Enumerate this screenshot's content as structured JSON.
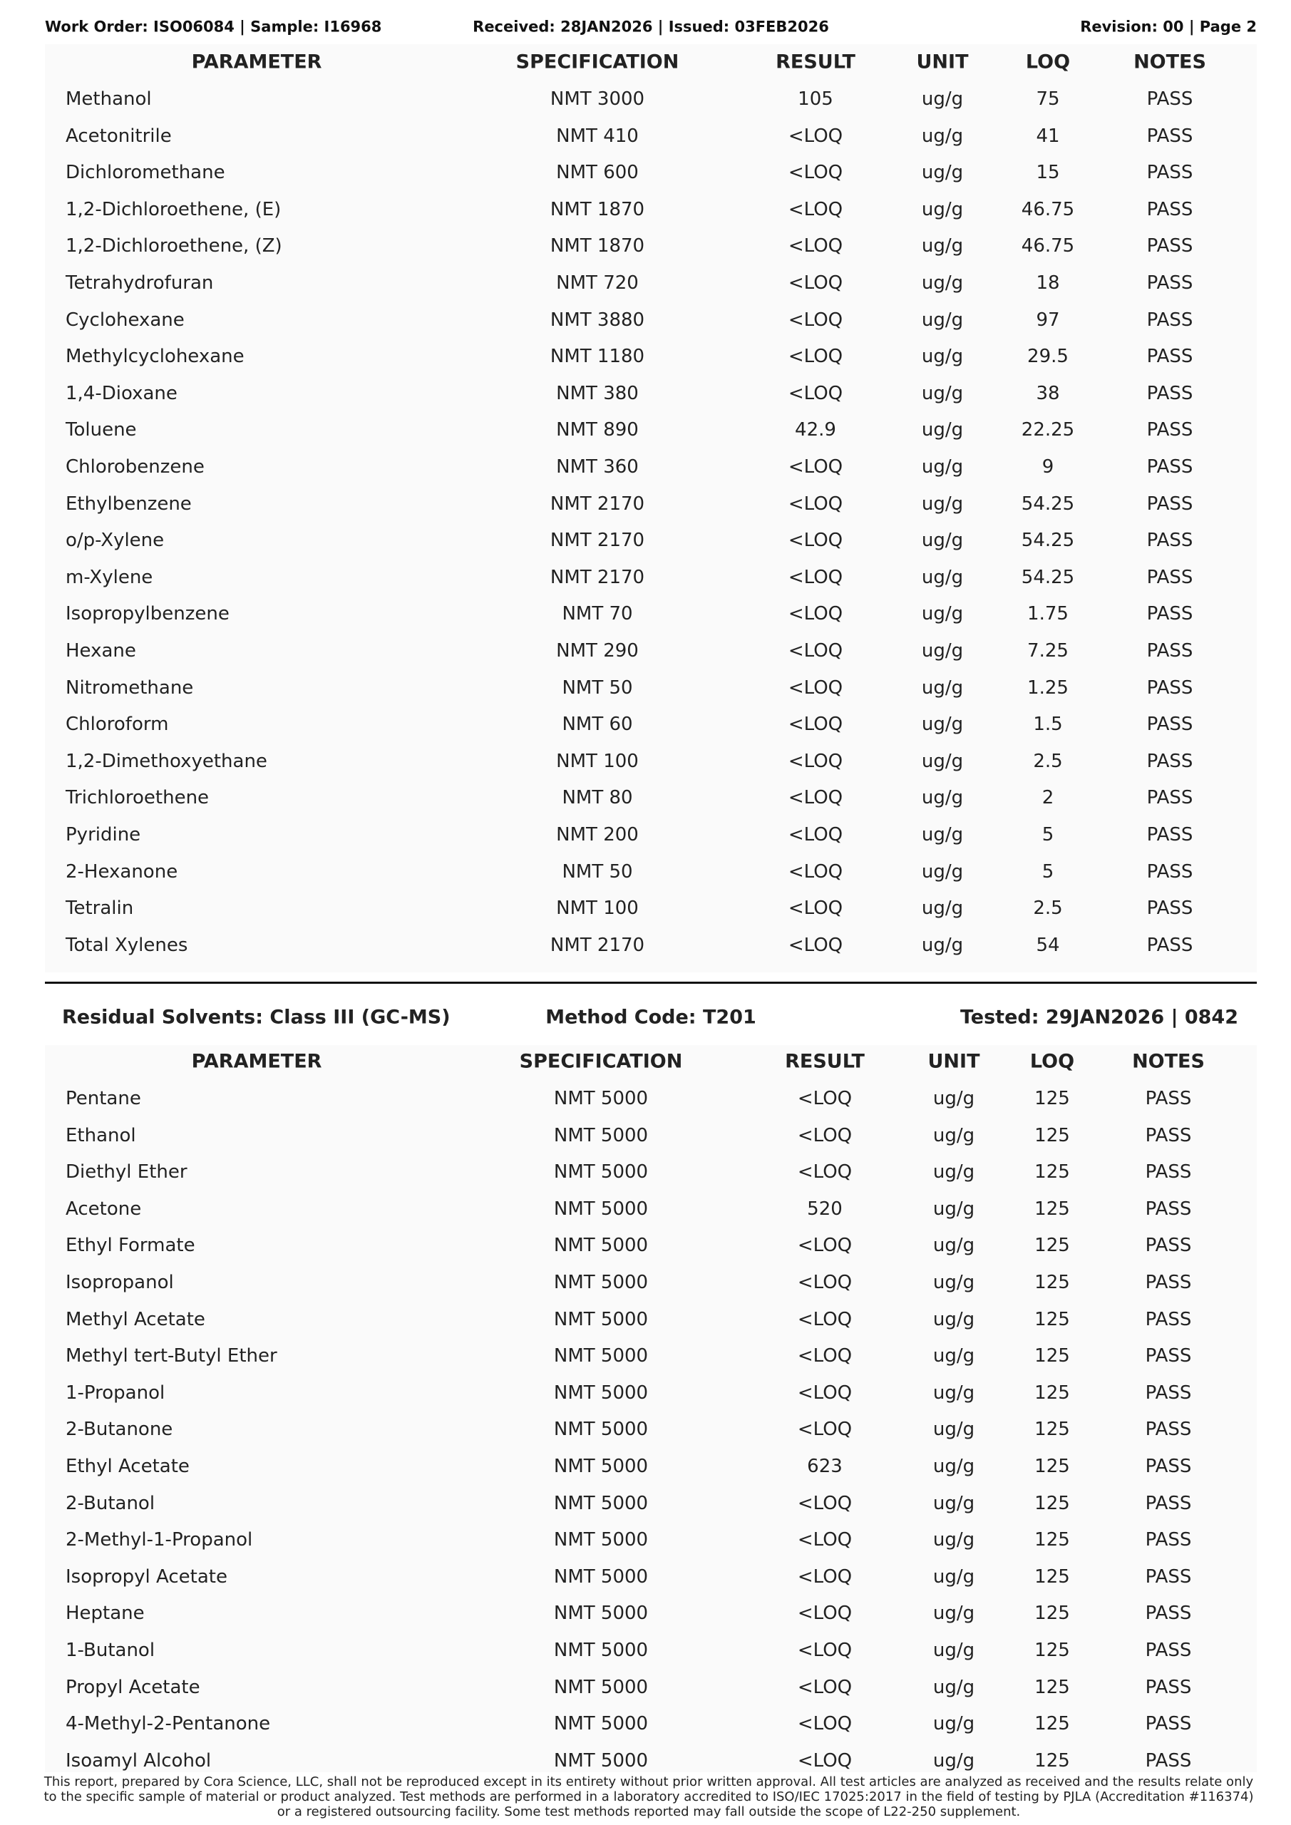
{
  "header": {
    "left": "Work Order: ISO06084 | Sample: I16968",
    "center": "Received: 28JAN2026 | Issued: 03FEB2026",
    "right": "Revision: 00 | Page 2"
  },
  "tables": [
    {
      "columns": [
        "PARAMETER",
        "SPECIFICATION",
        "RESULT",
        "UNIT",
        "LOQ",
        "NOTES"
      ],
      "rows": [
        [
          "Methanol",
          "NMT 3000",
          105,
          "ug/g",
          75,
          "PASS"
        ],
        [
          "Acetonitrile",
          "NMT 410",
          "<LOQ",
          "ug/g",
          41,
          "PASS"
        ],
        [
          "Dichloromethane",
          "NMT 600",
          "<LOQ",
          "ug/g",
          15,
          "PASS"
        ],
        [
          "1,2-Dichloroethene, (E)",
          "NMT 1870",
          "<LOQ",
          "ug/g",
          46.75,
          "PASS"
        ],
        [
          "1,2-Dichloroethene, (Z)",
          "NMT 1870",
          "<LOQ",
          "ug/g",
          46.75,
          "PASS"
        ],
        [
          "Tetrahydrofuran",
          "NMT 720",
          "<LOQ",
          "ug/g",
          18,
          "PASS"
        ],
        [
          "Cyclohexane",
          "NMT 3880",
          "<LOQ",
          "ug/g",
          97,
          "PASS"
        ],
        [
          "Methylcyclohexane",
          "NMT 1180",
          "<LOQ",
          "ug/g",
          29.5,
          "PASS"
        ],
        [
          "1,4-Dioxane",
          "NMT 380",
          "<LOQ",
          "ug/g",
          38,
          "PASS"
        ],
        [
          "Toluene",
          "NMT 890",
          42.9,
          "ug/g",
          22.25,
          "PASS"
        ],
        [
          "Chlorobenzene",
          "NMT 360",
          "<LOQ",
          "ug/g",
          9,
          "PASS"
        ],
        [
          "Ethylbenzene",
          "NMT 2170",
          "<LOQ",
          "ug/g",
          54.25,
          "PASS"
        ],
        [
          "o/p-Xylene",
          "NMT 2170",
          "<LOQ",
          "ug/g",
          54.25,
          "PASS"
        ],
        [
          "m-Xylene",
          "NMT 2170",
          "<LOQ",
          "ug/g",
          54.25,
          "PASS"
        ],
        [
          "Isopropylbenzene",
          "NMT 70",
          "<LOQ",
          "ug/g",
          1.75,
          "PASS"
        ],
        [
          "Hexane",
          "NMT 290",
          "<LOQ",
          "ug/g",
          7.25,
          "PASS"
        ],
        [
          "Nitromethane",
          "NMT 50",
          "<LOQ",
          "ug/g",
          1.25,
          "PASS"
        ],
        [
          "Chloroform",
          "NMT 60",
          "<LOQ",
          "ug/g",
          1.5,
          "PASS"
        ],
        [
          "1,2-Dimethoxyethane",
          "NMT 100",
          "<LOQ",
          "ug/g",
          2.5,
          "PASS"
        ],
        [
          "Trichloroethene",
          "NMT 80",
          "<LOQ",
          "ug/g",
          2,
          "PASS"
        ],
        [
          "Pyridine",
          "NMT 200",
          "<LOQ",
          "ug/g",
          5,
          "PASS"
        ],
        [
          "2-Hexanone",
          "NMT 50",
          "<LOQ",
          "ug/g",
          5,
          "PASS"
        ],
        [
          "Tetralin",
          "NMT 100",
          "<LOQ",
          "ug/g",
          2.5,
          "PASS"
        ],
        [
          "Total Xylenes",
          "NMT 2170",
          "<LOQ",
          "ug/g",
          54,
          "PASS"
        ]
      ]
    },
    {
      "section": {
        "title": "Residual Solvents: Class III (GC-MS)",
        "method": "Method Code: T201",
        "tested": "Tested: 29JAN2026 | 0842"
      },
      "columns": [
        "PARAMETER",
        "SPECIFICATION",
        "RESULT",
        "UNIT",
        "LOQ",
        "NOTES"
      ],
      "rows": [
        [
          "Pentane",
          "NMT 5000",
          "<LOQ",
          "ug/g",
          125,
          "PASS"
        ],
        [
          "Ethanol",
          "NMT 5000",
          "<LOQ",
          "ug/g",
          125,
          "PASS"
        ],
        [
          "Diethyl Ether",
          "NMT 5000",
          "<LOQ",
          "ug/g",
          125,
          "PASS"
        ],
        [
          "Acetone",
          "NMT 5000",
          520,
          "ug/g",
          125,
          "PASS"
        ],
        [
          "Ethyl Formate",
          "NMT 5000",
          "<LOQ",
          "ug/g",
          125,
          "PASS"
        ],
        [
          "Isopropanol",
          "NMT 5000",
          "<LOQ",
          "ug/g",
          125,
          "PASS"
        ],
        [
          "Methyl Acetate",
          "NMT 5000",
          "<LOQ",
          "ug/g",
          125,
          "PASS"
        ],
        [
          "Methyl tert-Butyl Ether",
          "NMT 5000",
          "<LOQ",
          "ug/g",
          125,
          "PASS"
        ],
        [
          "1-Propanol",
          "NMT 5000",
          "<LOQ",
          "ug/g",
          125,
          "PASS"
        ],
        [
          "2-Butanone",
          "NMT 5000",
          "<LOQ",
          "ug/g",
          125,
          "PASS"
        ],
        [
          "Ethyl Acetate",
          "NMT 5000",
          623,
          "ug/g",
          125,
          "PASS"
        ],
        [
          "2-Butanol",
          "NMT 5000",
          "<LOQ",
          "ug/g",
          125,
          "PASS"
        ],
        [
          "2-Methyl-1-Propanol",
          "NMT 5000",
          "<LOQ",
          "ug/g",
          125,
          "PASS"
        ],
        [
          "Isopropyl Acetate",
          "NMT 5000",
          "<LOQ",
          "ug/g",
          125,
          "PASS"
        ],
        [
          "Heptane",
          "NMT 5000",
          "<LOQ",
          "ug/g",
          125,
          "PASS"
        ],
        [
          "1-Butanol",
          "NMT 5000",
          "<LOQ",
          "ug/g",
          125,
          "PASS"
        ],
        [
          "Propyl Acetate",
          "NMT 5000",
          "<LOQ",
          "ug/g",
          125,
          "PASS"
        ],
        [
          "4-Methyl-2-Pentanone",
          "NMT 5000",
          "<LOQ",
          "ug/g",
          125,
          "PASS"
        ],
        [
          "Isoamyl Alcohol",
          "NMT 5000",
          "<LOQ",
          "ug/g",
          125,
          "PASS"
        ]
      ]
    }
  ],
  "footer": "This report, prepared by Cora Science, LLC, shall not be reproduced except in its entirety without prior written approval. All test articles are analyzed as received and the results relate only to the specific sample of material or product analyzed. Test methods are performed in a laboratory accredited to ISO/IEC 17025:2017 in the field of testing by PJLA (Accreditation #116374) or a registered outsourcing facility. Some test methods reported may fall outside the scope of L22-250 supplement."
}
